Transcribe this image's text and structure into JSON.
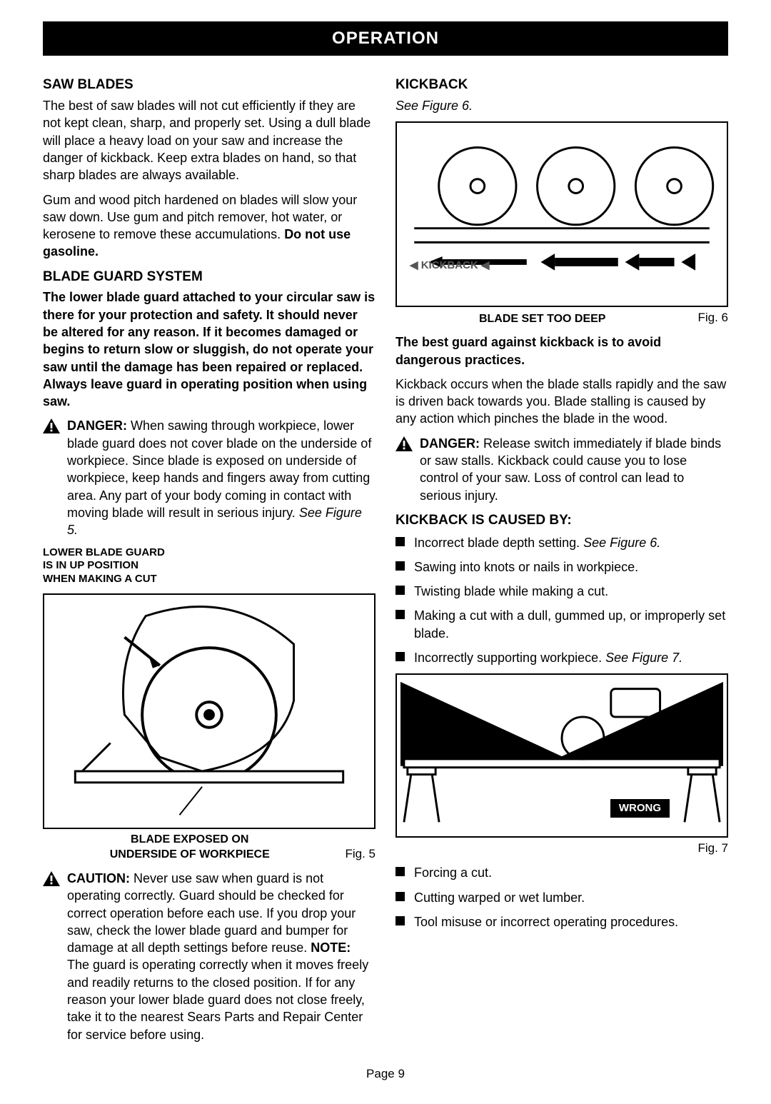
{
  "banner": "OPERATION",
  "left": {
    "h1": "SAW BLADES",
    "p1": "The best of saw blades will not cut efficiently if they are not kept clean, sharp, and properly set. Using a dull blade will place a heavy load on your saw and increase the danger of kickback. Keep extra blades on hand, so that sharp blades are always available.",
    "p2a": "Gum and wood pitch hardened on blades will slow your saw down. Use gum and pitch remover, hot water, or kerosene to remove these accumulations. ",
    "p2b": "Do not use gasoline.",
    "h2": "BLADE GUARD SYSTEM",
    "p3": "The lower blade guard attached to your circular saw is there for your protection and safety. It should never be altered for any reason. If it becomes damaged or begins to return slow or sluggish, do not operate your saw until the damage has been repaired or replaced. Always leave guard in operating position when using saw.",
    "danger_label": "DANGER: ",
    "danger1a": "When sawing through workpiece, lower blade guard does not cover blade on the underside of workpiece. Since blade is exposed on underside of workpiece, keep hands and fingers away from cutting area. Any part of your body coming in contact with moving blade will result in serious injury. ",
    "danger1b": "See Figure 5.",
    "fig5_title": "LOWER BLADE GUARD\nIS IN UP POSITION\nWHEN MAKING A CUT",
    "fig5_caption": "BLADE EXPOSED ON\nUNDERSIDE OF WORKPIECE",
    "fig5_label": "Fig. 5",
    "caution_label": "CAUTION: ",
    "caution1a": "Never use saw when guard is not operating correctly. Guard should be checked for correct operation before each use. If you drop your saw, check the lower blade guard and bumper for damage at all depth settings before reuse. ",
    "caution1b": "NOTE: ",
    "caution1c": "The guard is operating correctly when it moves freely and readily returns to the closed position. If for any reason your lower blade guard does not close freely, take it to the nearest Sears Parts and Repair Center for service before using."
  },
  "right": {
    "h1": "KICKBACK",
    "see6": "See Figure 6.",
    "fig6_kick": "KICKBACK",
    "fig6_caption": "BLADE SET TOO DEEP",
    "fig6_label": "Fig. 6",
    "p1": "The best guard against kickback is to avoid dangerous practices.",
    "p2": "Kickback occurs when the blade stalls rapidly and the saw is driven back towards you. Blade stalling is caused by any action which pinches the blade in the wood.",
    "danger_label": "DANGER: ",
    "danger2": "Release switch immediately if blade binds or saw stalls. Kickback could cause you to lose control of your saw. Loss of control can lead to serious injury.",
    "h2": "KICKBACK IS CAUSED BY:",
    "causes1": [
      {
        "text": "Incorrect blade depth setting. ",
        "ref": "See Figure 6."
      },
      {
        "text": "Sawing into knots or nails in workpiece."
      },
      {
        "text": "Twisting blade while making a cut."
      },
      {
        "text": "Making a cut with a dull, gummed up, or improperly set blade."
      },
      {
        "text": "Incorrectly supporting workpiece. ",
        "ref": "See Figure 7."
      }
    ],
    "fig7_wrong": "WRONG",
    "fig7_label": "Fig. 7",
    "causes2": [
      {
        "text": "Forcing a cut."
      },
      {
        "text": "Cutting warped or wet lumber."
      },
      {
        "text": "Tool misuse or incorrect operating procedures."
      }
    ]
  },
  "page_num": "Page 9"
}
